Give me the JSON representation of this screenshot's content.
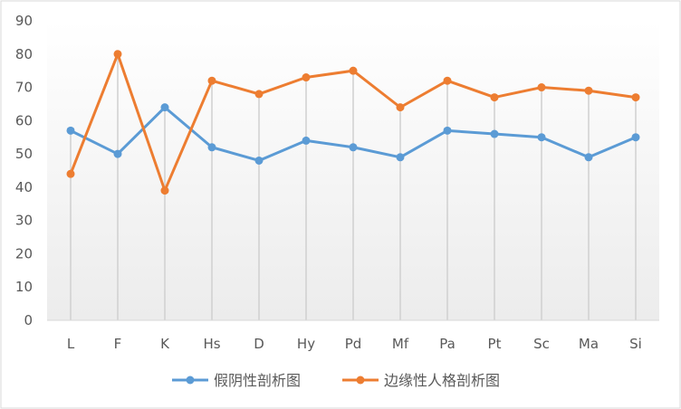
{
  "chart_data": {
    "type": "line",
    "categories": [
      "L",
      "F",
      "K",
      "Hs",
      "D",
      "Hy",
      "Pd",
      "Mf",
      "Pa",
      "Pt",
      "Sc",
      "Ma",
      "Si"
    ],
    "y_ticks": [
      "0",
      "10",
      "20",
      "30",
      "40",
      "50",
      "60",
      "70",
      "80",
      "90"
    ],
    "ylim": [
      0,
      90
    ],
    "grid": "vertical drop lines",
    "legend_position": "bottom",
    "series": [
      {
        "name": "假阴性剖析图",
        "color": "#5B9BD5",
        "values": [
          57,
          50,
          64,
          52,
          48,
          54,
          52,
          49,
          57,
          56,
          55,
          49,
          55
        ]
      },
      {
        "name": "边缘性人格剖析图",
        "color": "#ED7D31",
        "values": [
          44,
          80,
          39,
          72,
          68,
          73,
          75,
          64,
          72,
          67,
          70,
          69,
          67
        ]
      }
    ]
  }
}
